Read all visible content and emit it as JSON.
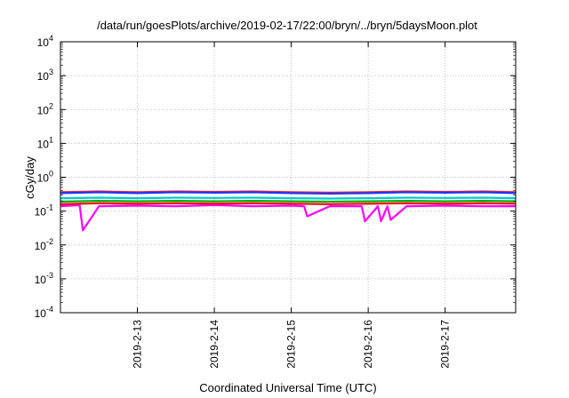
{
  "chart_data": {
    "type": "line",
    "title": "/data/run/goesPlots/archive/2019-02-17/22:00/bryn/../bryn/5daysMoon.plot",
    "xlabel": "Coordinated Universal Time (UTC)",
    "ylabel": "cGy/day",
    "yscale": "log",
    "ylim": [
      0.0001,
      10000
    ],
    "xlim": [
      "2019-02-12 00:00",
      "2019-02-17 22:00"
    ],
    "grid": true,
    "legend": "none",
    "x_tick_labels": [
      "2019-2-13",
      "2019-2-14",
      "2019-2-15",
      "2019-2-16",
      "2019-2-17"
    ],
    "y_ticks": [
      {
        "base": "10",
        "exp": "-4"
      },
      {
        "base": "10",
        "exp": "-3"
      },
      {
        "base": "10",
        "exp": "-2"
      },
      {
        "base": "10",
        "exp": "-1"
      },
      {
        "base": "10",
        "exp": "0"
      },
      {
        "base": "10",
        "exp": "1"
      },
      {
        "base": "10",
        "exp": "2"
      },
      {
        "base": "10",
        "exp": "3"
      },
      {
        "base": "10",
        "exp": "4"
      }
    ],
    "series": [
      {
        "color": "#ff00ff",
        "x": [
          "2019-02-12 00:00",
          "2019-02-12 06:00",
          "2019-02-12 07:00",
          "2019-02-12 12:00",
          "2019-02-13 00:00",
          "2019-02-13 12:00",
          "2019-02-14 00:00",
          "2019-02-14 12:00",
          "2019-02-15 00:00",
          "2019-02-15 04:00",
          "2019-02-15 05:00",
          "2019-02-15 12:00",
          "2019-02-15 22:00",
          "2019-02-15 23:00",
          "2019-02-16 03:00",
          "2019-02-16 04:00",
          "2019-02-16 06:00",
          "2019-02-16 07:00",
          "2019-02-16 12:00",
          "2019-02-17 00:00",
          "2019-02-17 12:00",
          "2019-02-17 22:00"
        ],
        "y": [
          0.14,
          0.15,
          0.027,
          0.14,
          0.145,
          0.14,
          0.15,
          0.14,
          0.145,
          0.14,
          0.07,
          0.14,
          0.14,
          0.05,
          0.14,
          0.05,
          0.14,
          0.055,
          0.14,
          0.145,
          0.14,
          0.14
        ]
      },
      {
        "color": "#ff0000",
        "x": [
          "2019-02-12 00:00",
          "2019-02-12 12:00",
          "2019-02-13 00:00",
          "2019-02-13 12:00",
          "2019-02-14 00:00",
          "2019-02-14 12:00",
          "2019-02-15 00:00",
          "2019-02-15 12:00",
          "2019-02-16 00:00",
          "2019-02-16 12:00",
          "2019-02-17 00:00",
          "2019-02-17 12:00",
          "2019-02-17 22:00"
        ],
        "y": [
          0.16,
          0.17,
          0.165,
          0.17,
          0.165,
          0.17,
          0.165,
          0.16,
          0.165,
          0.17,
          0.165,
          0.17,
          0.165
        ]
      },
      {
        "color": "#00aa00",
        "x": [
          "2019-02-12 00:00",
          "2019-02-12 12:00",
          "2019-02-13 00:00",
          "2019-02-13 12:00",
          "2019-02-14 00:00",
          "2019-02-14 12:00",
          "2019-02-15 00:00",
          "2019-02-15 12:00",
          "2019-02-16 00:00",
          "2019-02-16 12:00",
          "2019-02-17 00:00",
          "2019-02-17 12:00",
          "2019-02-17 22:00"
        ],
        "y": [
          0.19,
          0.2,
          0.195,
          0.2,
          0.195,
          0.2,
          0.195,
          0.19,
          0.195,
          0.2,
          0.195,
          0.2,
          0.195
        ]
      },
      {
        "color": "#00cccc",
        "x": [
          "2019-02-12 00:00",
          "2019-02-12 12:00",
          "2019-02-13 00:00",
          "2019-02-13 12:00",
          "2019-02-14 00:00",
          "2019-02-14 12:00",
          "2019-02-15 00:00",
          "2019-02-15 12:00",
          "2019-02-16 00:00",
          "2019-02-16 12:00",
          "2019-02-17 00:00",
          "2019-02-17 12:00",
          "2019-02-17 22:00"
        ],
        "y": [
          0.24,
          0.25,
          0.24,
          0.25,
          0.245,
          0.25,
          0.24,
          0.235,
          0.24,
          0.25,
          0.245,
          0.25,
          0.24
        ]
      },
      {
        "color": "#ff2020",
        "x": [
          "2019-02-12 00:00",
          "2019-02-12 12:00",
          "2019-02-13 00:00",
          "2019-02-13 12:00",
          "2019-02-14 00:00",
          "2019-02-14 12:00",
          "2019-02-15 00:00",
          "2019-02-15 12:00",
          "2019-02-16 00:00",
          "2019-02-16 12:00",
          "2019-02-17 00:00",
          "2019-02-17 12:00",
          "2019-02-17 22:00"
        ],
        "y": [
          0.36,
          0.38,
          0.36,
          0.38,
          0.37,
          0.38,
          0.36,
          0.35,
          0.36,
          0.38,
          0.37,
          0.38,
          0.36
        ]
      },
      {
        "color": "#2233ff",
        "x": [
          "2019-02-12 00:00",
          "2019-02-12 12:00",
          "2019-02-13 00:00",
          "2019-02-13 12:00",
          "2019-02-14 00:00",
          "2019-02-14 12:00",
          "2019-02-15 00:00",
          "2019-02-15 12:00",
          "2019-02-16 00:00",
          "2019-02-16 12:00",
          "2019-02-17 00:00",
          "2019-02-17 12:00",
          "2019-02-17 22:00"
        ],
        "y": [
          0.34,
          0.36,
          0.34,
          0.36,
          0.35,
          0.36,
          0.34,
          0.33,
          0.34,
          0.36,
          0.35,
          0.36,
          0.34
        ]
      }
    ]
  }
}
